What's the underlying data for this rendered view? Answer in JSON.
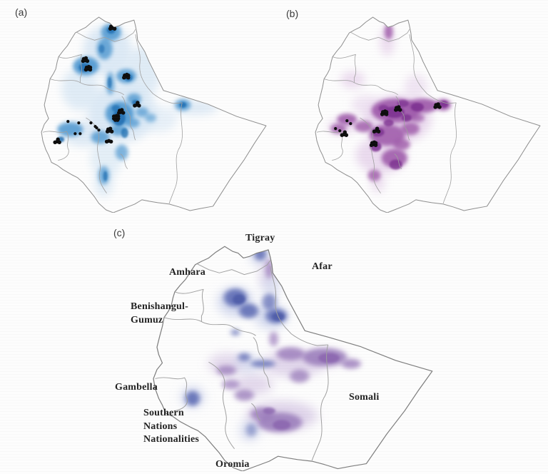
{
  "figure": {
    "panels": [
      {
        "id": "a",
        "label": "(a)"
      },
      {
        "id": "b",
        "label": "(b)"
      },
      {
        "id": "c",
        "label": "(c)",
        "regions": [
          {
            "name": "Tigray",
            "lines": [
              "Tigray"
            ]
          },
          {
            "name": "Afar",
            "lines": [
              "Afar"
            ]
          },
          {
            "name": "Amhara",
            "lines": [
              "Amhara"
            ]
          },
          {
            "name": "Benishangul-Gumuz",
            "lines": [
              "Benishangul-",
              "Gumuz"
            ]
          },
          {
            "name": "Gambella",
            "lines": [
              "Gambella"
            ]
          },
          {
            "name": "Southern Nations Nationalities",
            "lines": [
              "Southern",
              "Nations",
              "Nationalities"
            ]
          },
          {
            "name": "Oromia",
            "lines": [
              "Oromia"
            ]
          },
          {
            "name": "Somali",
            "lines": [
              "Somali"
            ]
          }
        ]
      }
    ],
    "colors": {
      "panel_a_light": "#d9e8f5",
      "panel_a_mid": "#4d97d0",
      "panel_a_dark": "#1d6cb0",
      "panel_b_light": "#e8d5ec",
      "panel_b_mid": "#9c55a8",
      "panel_b_dark": "#7b2f8f",
      "panel_c_blue": "#5866b2",
      "panel_c_blue_light": "#c6cde9",
      "panel_c_blue_dark": "#4a58a6",
      "panel_c_purple": "#9879ba",
      "panel_c_purple_light": "#d8cbe6",
      "panel_c_purple_dark": "#8a63ae",
      "occurrence": "#0d0d0d",
      "border": "#a0a0a0",
      "outline": "#8f8f8f",
      "label_text": "#222222"
    }
  }
}
